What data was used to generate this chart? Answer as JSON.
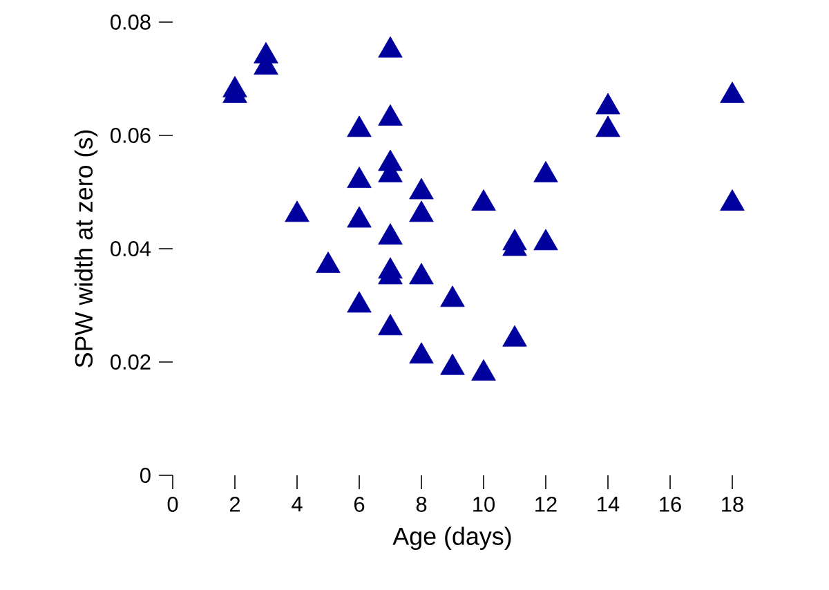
{
  "chart_data": {
    "type": "scatter",
    "xlabel": "Age (days)",
    "ylabel": "SPW width at zero (s)",
    "x": [
      2,
      2,
      3,
      3,
      4,
      5,
      6,
      6,
      6,
      6,
      7,
      7,
      7,
      7,
      7,
      7,
      7,
      7,
      8,
      8,
      8,
      8,
      9,
      9,
      10,
      10,
      11,
      11,
      11,
      12,
      12,
      14,
      14,
      18,
      18
    ],
    "values": [
      0.068,
      0.067,
      0.074,
      0.072,
      0.046,
      0.037,
      0.061,
      0.052,
      0.045,
      0.03,
      0.075,
      0.063,
      0.055,
      0.053,
      0.042,
      0.036,
      0.035,
      0.026,
      0.05,
      0.046,
      0.035,
      0.021,
      0.031,
      0.019,
      0.048,
      0.018,
      0.041,
      0.04,
      0.024,
      0.053,
      0.041,
      0.065,
      0.061,
      0.067,
      0.048
    ],
    "color": "#00009c",
    "marker": "triangle",
    "xlim": [
      0,
      18
    ],
    "xticks": [
      0,
      2,
      4,
      6,
      8,
      10,
      12,
      14,
      16,
      18
    ],
    "ylim": [
      0,
      0.08
    ],
    "yticks": [
      0,
      0.02,
      0.04,
      0.06,
      0.08
    ]
  }
}
